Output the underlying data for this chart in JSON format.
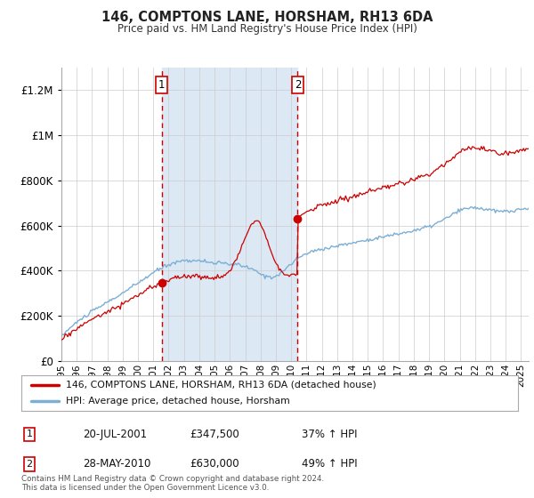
{
  "title": "146, COMPTONS LANE, HORSHAM, RH13 6DA",
  "subtitle": "Price paid vs. HM Land Registry's House Price Index (HPI)",
  "hpi_label": "HPI: Average price, detached house, Horsham",
  "price_label": "146, COMPTONS LANE, HORSHAM, RH13 6DA (detached house)",
  "transaction1_date": "20-JUL-2001",
  "transaction1_price": 347500,
  "transaction1_hpi": "37% ↑ HPI",
  "transaction2_date": "28-MAY-2010",
  "transaction2_price": 630000,
  "transaction2_hpi": "49% ↑ HPI",
  "footer": "Contains HM Land Registry data © Crown copyright and database right 2024.\nThis data is licensed under the Open Government Licence v3.0.",
  "price_color": "#cc0000",
  "hpi_color": "#7bafd4",
  "shaded_color": "#dce9f5",
  "vline_color": "#cc0000",
  "background_color": "#ffffff",
  "ylim_max": 1300000,
  "xstart": 1995.0,
  "xend": 2025.5,
  "t1": 2001.55,
  "t2": 2010.42
}
